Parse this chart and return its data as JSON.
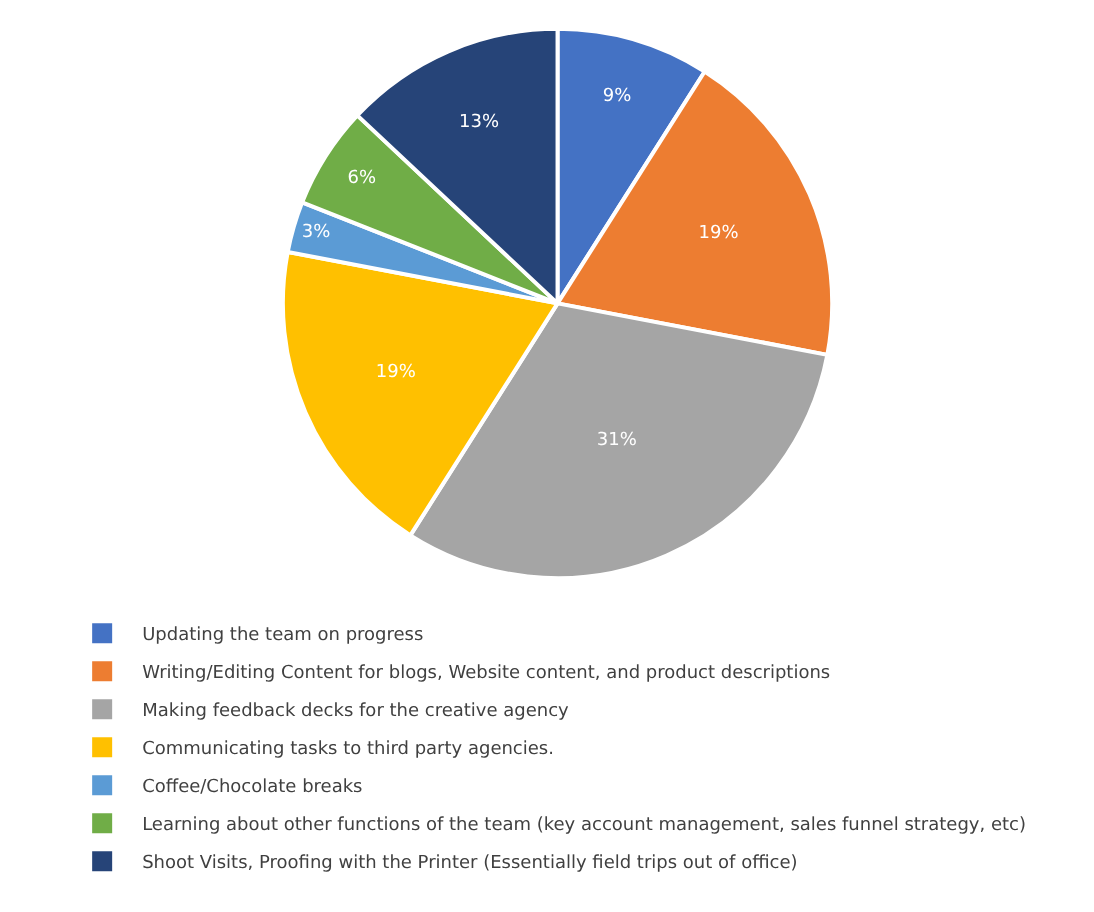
{
  "chart_data": {
    "type": "pie",
    "categories": [
      "Updating the team on progress",
      "Writing/Editing Content for blogs, Website content, and product descriptions",
      "Making feedback decks for the creative agency",
      "Communicating tasks to third party agencies.",
      "Coffee/Chocolate breaks",
      "Learning about other functions of the team (key account management, sales funnel strategy, etc)",
      "Shoot Visits, Proofing with the Printer (Essentially field trips out of office)"
    ],
    "values": [
      9,
      19,
      31,
      19,
      3,
      6,
      13
    ],
    "value_labels": [
      "9%",
      "19%",
      "31%",
      "19%",
      "3%",
      "6%",
      "13%"
    ],
    "colors": [
      "#4472c4",
      "#ed7d31",
      "#a5a5a5",
      "#ffc000",
      "#5b9bd5",
      "#70ad47",
      "#264478"
    ],
    "legend": "bottom"
  }
}
